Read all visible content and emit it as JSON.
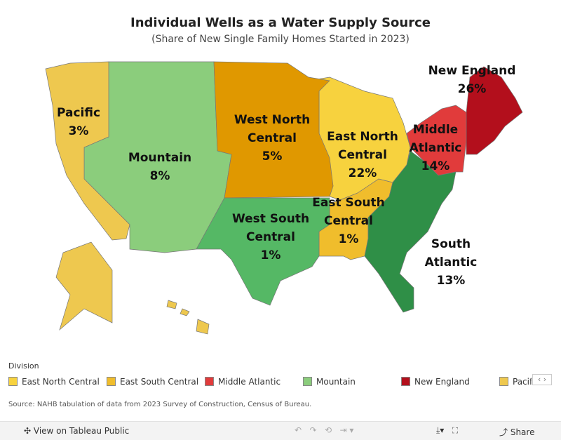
{
  "chart_data": {
    "type": "choropleth",
    "title": "Individual Wells as a Water Supply Source",
    "subtitle": "(Share of New Single Family Homes Started in 2023)",
    "legend_title": "Division",
    "categories": [
      "East North Central",
      "East South Central",
      "Middle Atlantic",
      "Mountain",
      "New England",
      "Pacific",
      "South Atlantic",
      "West North Central",
      "West South Central"
    ],
    "values": [
      22,
      1,
      14,
      8,
      26,
      3,
      13,
      5,
      1
    ],
    "value_labels": [
      "22%",
      "1%",
      "14%",
      "8%",
      "26%",
      "3%",
      "13%",
      "5%",
      "1%"
    ],
    "colors": [
      "#f7d23e",
      "#f0bd2c",
      "#e13b3b",
      "#8bcd7c",
      "#b30f1c",
      "#eec84f",
      "#2f8f47",
      "#e09800",
      "#55b865"
    ],
    "source": "Source: NAHB tabulation of data from 2023 Survey of Construction, Census of Bureau."
  },
  "toolbar": {
    "view": "View on Tableau Public",
    "share": "Share"
  }
}
